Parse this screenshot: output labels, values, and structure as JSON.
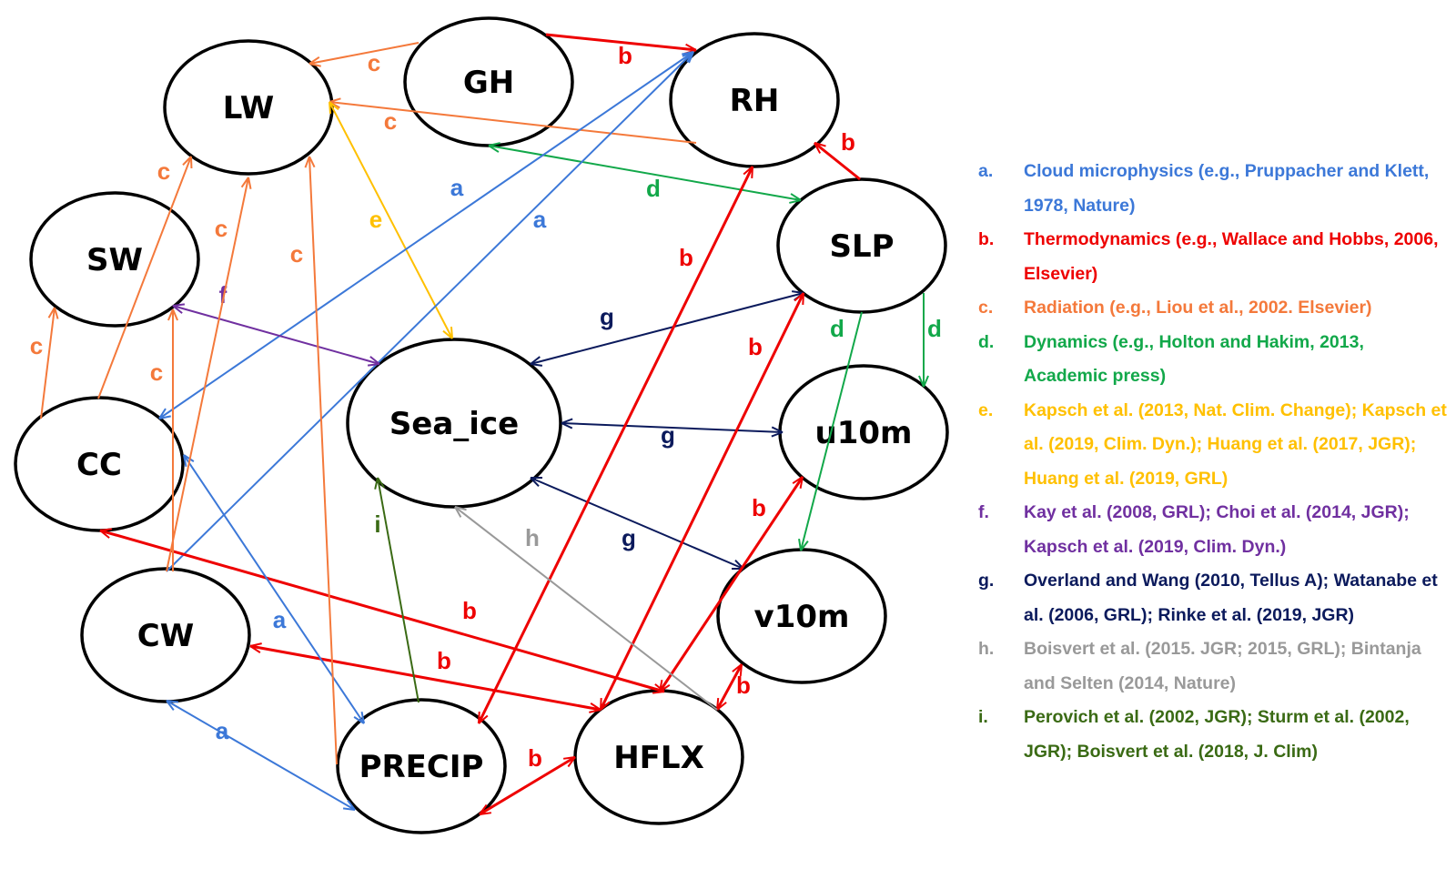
{
  "nodes": [
    "GH",
    "LW",
    "RH",
    "SLP",
    "SW",
    "Sea_ice",
    "u10m",
    "CC",
    "v10m",
    "CW",
    "PRECIP",
    "HFLX"
  ],
  "categories": {
    "a": {
      "color": "#3c78d8",
      "text": "Cloud microphysics (e.g., Pruppacher and Klett, 1978, Nature)"
    },
    "b": {
      "color": "#ee0000",
      "text": "Thermodynamics (e.g., Wallace and Hobbs, 2006, Elsevier)"
    },
    "c": {
      "color": "#f4793b",
      "text": "Radiation (e.g., Liou et al., 2002. Elsevier)"
    },
    "d": {
      "color": "#12a84a",
      "text": "Dynamics (e.g., Holton and Hakim, 2013, Academic press)"
    },
    "e": {
      "color": "#ffc000",
      "text": "Kapsch et al. (2013, Nat. Clim. Change); Kapsch et al. (2019, Clim. Dyn.); Huang et al. (2017, JGR); Huang et al. (2019, GRL)"
    },
    "f": {
      "color": "#7030a0",
      "text": "Kay et al. (2008, GRL); Choi et al. (2014, JGR); Kapsch et al. (2019, Clim. Dyn.)"
    },
    "g": {
      "color": "#0b1a5c",
      "text": "Overland  and Wang (2010, Tellus A); Watanabe et al. (2006, GRL); Rinke et al. (2019, JGR)"
    },
    "h": {
      "color": "#999999",
      "text": "Boisvert et al. (2015. JGR; 2015, GRL); Bintanja and Selten (2014, Nature)"
    },
    "i": {
      "color": "#3a6a14",
      "text": "Perovich et al. (2002, JGR); Sturm et al. (2002, JGR); Boisvert et al. (2018, J. Clim)"
    }
  },
  "legend_keys": [
    "a.",
    "b.",
    "c.",
    "d.",
    "e.",
    "f.",
    "g.",
    "h.",
    "i."
  ],
  "edges": [
    {
      "from": "GH",
      "to": "LW",
      "label": "c",
      "both": false
    },
    {
      "from": "GH",
      "to": "RH",
      "label": "b",
      "both": false
    },
    {
      "from": "RH",
      "to": "LW",
      "label": "c",
      "both": false
    },
    {
      "from": "GH",
      "to": "SLP",
      "label": "d",
      "both": true
    },
    {
      "from": "SLP",
      "to": "RH",
      "label": "b",
      "both": false
    },
    {
      "from": "LW",
      "to": "Sea_ice",
      "label": "e",
      "both": true
    },
    {
      "from": "CC",
      "to": "RH",
      "label": "a",
      "both": true
    },
    {
      "from": "CW",
      "to": "RH",
      "label": "a",
      "both": false
    },
    {
      "from": "SW",
      "to": "Sea_ice",
      "label": "f",
      "both": true
    },
    {
      "from": "SLP",
      "to": "Sea_ice",
      "label": "g",
      "both": true
    },
    {
      "from": "Sea_ice",
      "to": "u10m",
      "label": "g",
      "both": true
    },
    {
      "from": "Sea_ice",
      "to": "v10m",
      "label": "g",
      "both": true
    },
    {
      "from": "SLP",
      "to": "u10m",
      "label": "d",
      "both": false
    },
    {
      "from": "SLP",
      "to": "v10m",
      "label": "d",
      "both": false
    },
    {
      "from": "RH",
      "to": "PRECIP",
      "label": "b",
      "both": true
    },
    {
      "from": "SLP",
      "to": "HFLX",
      "label": "b",
      "both": true
    },
    {
      "from": "u10m",
      "to": "HFLX",
      "label": "b",
      "both": true
    },
    {
      "from": "v10m",
      "to": "HFLX",
      "label": "b",
      "both": true
    },
    {
      "from": "CC",
      "to": "HFLX",
      "label": "b",
      "both": true
    },
    {
      "from": "CW",
      "to": "HFLX",
      "label": "b",
      "both": true
    },
    {
      "from": "PRECIP",
      "to": "HFLX",
      "label": "b",
      "both": true
    },
    {
      "from": "CC",
      "to": "PRECIP",
      "label": "a",
      "both": true
    },
    {
      "from": "CW",
      "to": "PRECIP",
      "label": "a",
      "both": true
    },
    {
      "from": "HFLX",
      "to": "Sea_ice",
      "label": "h",
      "both": false
    },
    {
      "from": "PRECIP",
      "to": "Sea_ice",
      "label": "i",
      "both": false
    },
    {
      "from": "CC",
      "to": "SW",
      "label": "c",
      "both": false
    },
    {
      "from": "CC",
      "to": "LW",
      "label": "c",
      "both": false
    },
    {
      "from": "CW",
      "to": "LW",
      "label": "c",
      "both": false
    },
    {
      "from": "CW",
      "to": "SW",
      "label": "c",
      "both": false
    },
    {
      "from": "PRECIP",
      "to": "LW",
      "label": "c",
      "both": false
    }
  ]
}
